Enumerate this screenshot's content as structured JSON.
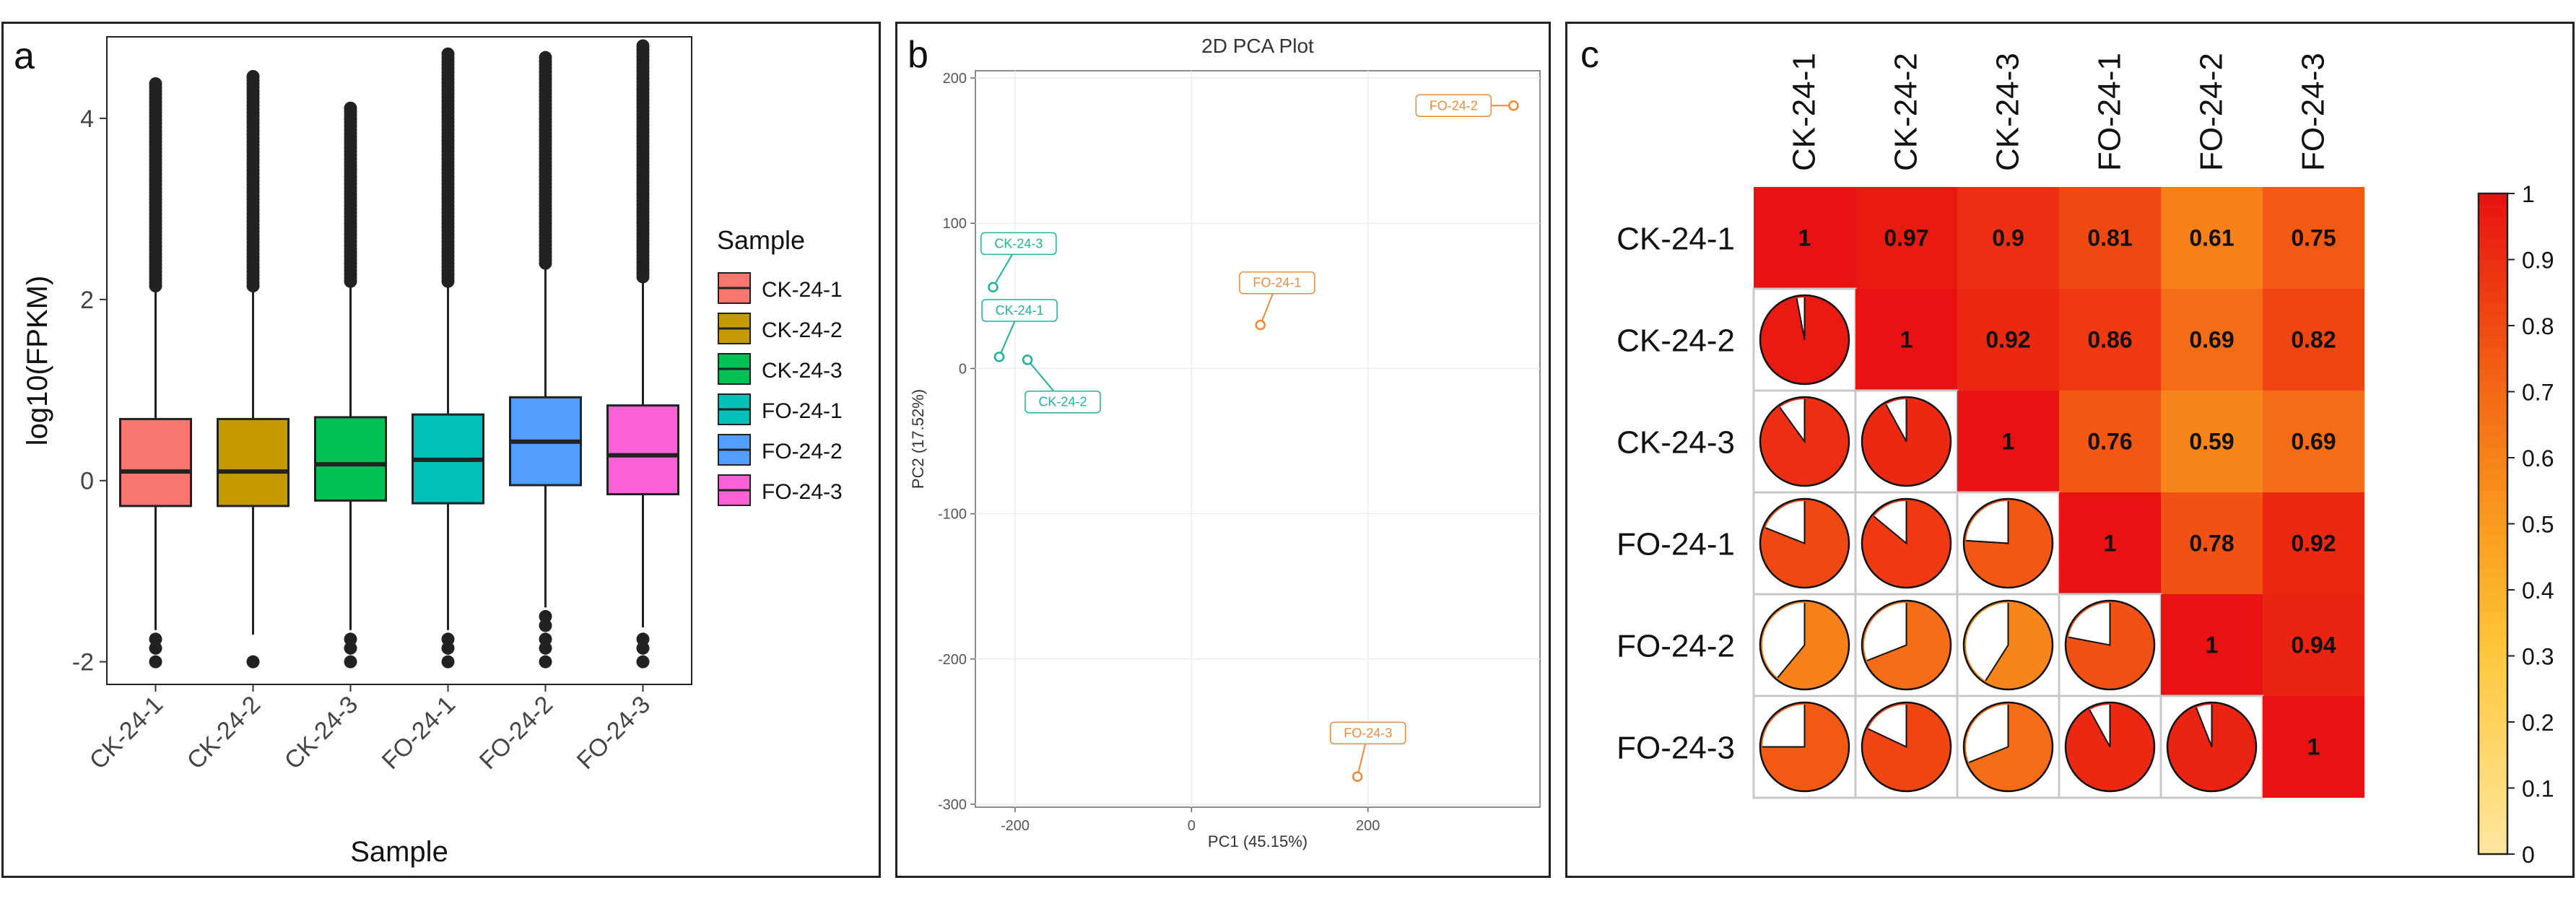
{
  "chart_data": [
    {
      "panel": "a",
      "type": "boxplot",
      "panel_label": "a",
      "xlabel": "Sample",
      "ylabel": "log10(FPKM)",
      "ylim": [
        -2.25,
        4.9
      ],
      "yticks": [
        -2,
        0,
        2,
        4
      ],
      "ytick_labels": [
        "-2",
        "0",
        "2",
        "4"
      ],
      "legend_title": "Sample",
      "categories": [
        "CK-24-1",
        "CK-24-2",
        "CK-24-3",
        "FO-24-1",
        "FO-24-2",
        "FO-24-3"
      ],
      "colors": [
        "#F8766D",
        "#C49A00",
        "#00C153",
        "#00C0B8",
        "#529EFF",
        "#FB61D7"
      ],
      "boxes": [
        {
          "name": "CK-24-1",
          "q1": -0.28,
          "median": 0.1,
          "q3": 0.68,
          "whisker_low": -1.65,
          "whisker_high": 2.1,
          "outliers_low": [
            -1.75,
            -1.85,
            -2.0
          ],
          "outlier_high_start": 2.15,
          "outlier_high_max": 4.42
        },
        {
          "name": "CK-24-2",
          "q1": -0.28,
          "median": 0.1,
          "q3": 0.68,
          "whisker_low": -1.7,
          "whisker_high": 2.1,
          "outliers_low": [
            -2.0
          ],
          "outlier_high_start": 2.15,
          "outlier_high_max": 4.48
        },
        {
          "name": "CK-24-3",
          "q1": -0.22,
          "median": 0.18,
          "q3": 0.7,
          "whisker_low": -1.65,
          "whisker_high": 2.15,
          "outliers_low": [
            -1.75,
            -1.85,
            -2.0
          ],
          "outlier_high_start": 2.2,
          "outlier_high_max": 4.15
        },
        {
          "name": "FO-24-1",
          "q1": -0.25,
          "median": 0.23,
          "q3": 0.73,
          "whisker_low": -1.65,
          "whisker_high": 2.15,
          "outliers_low": [
            -1.75,
            -1.85,
            -2.0
          ],
          "outlier_high_start": 2.2,
          "outlier_high_max": 4.75
        },
        {
          "name": "FO-24-2",
          "q1": -0.05,
          "median": 0.43,
          "q3": 0.92,
          "whisker_low": -1.4,
          "whisker_high": 2.35,
          "outliers_low": [
            -1.5,
            -1.6,
            -1.75,
            -1.85,
            -2.0
          ],
          "outlier_high_start": 2.4,
          "outlier_high_max": 4.68
        },
        {
          "name": "FO-24-3",
          "q1": -0.15,
          "median": 0.28,
          "q3": 0.83,
          "whisker_low": -1.62,
          "whisker_high": 2.2,
          "outliers_low": [
            -1.75,
            -1.85,
            -2.0
          ],
          "outlier_high_start": 2.25,
          "outlier_high_max": 4.82
        }
      ]
    },
    {
      "panel": "b",
      "type": "scatter",
      "panel_label": "b",
      "title": "2D PCA Plot",
      "xlabel": "PC1 (45.15%)",
      "ylabel": "PC2 (17.52%)",
      "xlim": [
        -245,
        395
      ],
      "ylim": [
        -302,
        205
      ],
      "xticks": [
        -200,
        0,
        200
      ],
      "xtick_labels": [
        "-200",
        "0",
        "200"
      ],
      "yticks": [
        -300,
        -200,
        -100,
        0,
        100,
        200
      ],
      "ytick_labels": [
        "-300",
        "-200",
        "-100",
        "0",
        "100",
        "200"
      ],
      "points": [
        {
          "name": "CK-24-1",
          "x": -218,
          "y": 8,
          "color": "#1DB39A",
          "label_x": -195,
          "label_y": 40
        },
        {
          "name": "CK-24-2",
          "x": -186,
          "y": 6,
          "color": "#1DB39A",
          "label_x": -146,
          "label_y": -23
        },
        {
          "name": "CK-24-3",
          "x": -225,
          "y": 56,
          "color": "#1DB39A",
          "label_x": -196,
          "label_y": 86
        },
        {
          "name": "FO-24-1",
          "x": 78,
          "y": 30,
          "color": "#F08A3A",
          "label_x": 97,
          "label_y": 59
        },
        {
          "name": "FO-24-2",
          "x": 365,
          "y": 181,
          "color": "#F08A3A",
          "label_x": 297,
          "label_y": 181
        },
        {
          "name": "FO-24-3",
          "x": 188,
          "y": -281,
          "color": "#F08A3A",
          "label_x": 200,
          "label_y": -251
        }
      ]
    },
    {
      "panel": "c",
      "type": "heatmap",
      "panel_label": "c",
      "labels": [
        "CK-24-1",
        "CK-24-2",
        "CK-24-3",
        "FO-24-1",
        "FO-24-2",
        "FO-24-3"
      ],
      "matrix": [
        [
          1,
          0.97,
          0.9,
          0.81,
          0.61,
          0.75
        ],
        [
          0.97,
          1,
          0.92,
          0.86,
          0.69,
          0.82
        ],
        [
          0.9,
          0.92,
          1,
          0.76,
          0.59,
          0.69
        ],
        [
          0.81,
          0.86,
          0.76,
          1,
          0.78,
          0.92
        ],
        [
          0.61,
          0.69,
          0.59,
          0.78,
          1,
          0.94
        ],
        [
          0.75,
          0.82,
          0.69,
          0.92,
          0.94,
          1
        ]
      ],
      "upper_triangle": "numbers",
      "lower_triangle": "pies",
      "colorbar_ticks": [
        0,
        0.1,
        0.2,
        0.3,
        0.4,
        0.5,
        0.6,
        0.7,
        0.8,
        0.9,
        1
      ],
      "colorbar_tick_labels": [
        "0",
        "0.1",
        "0.2",
        "0.3",
        "0.4",
        "0.5",
        "0.6",
        "0.7",
        "0.8",
        "0.9",
        "1"
      ],
      "colorbar_range": [
        0,
        1
      ]
    }
  ]
}
